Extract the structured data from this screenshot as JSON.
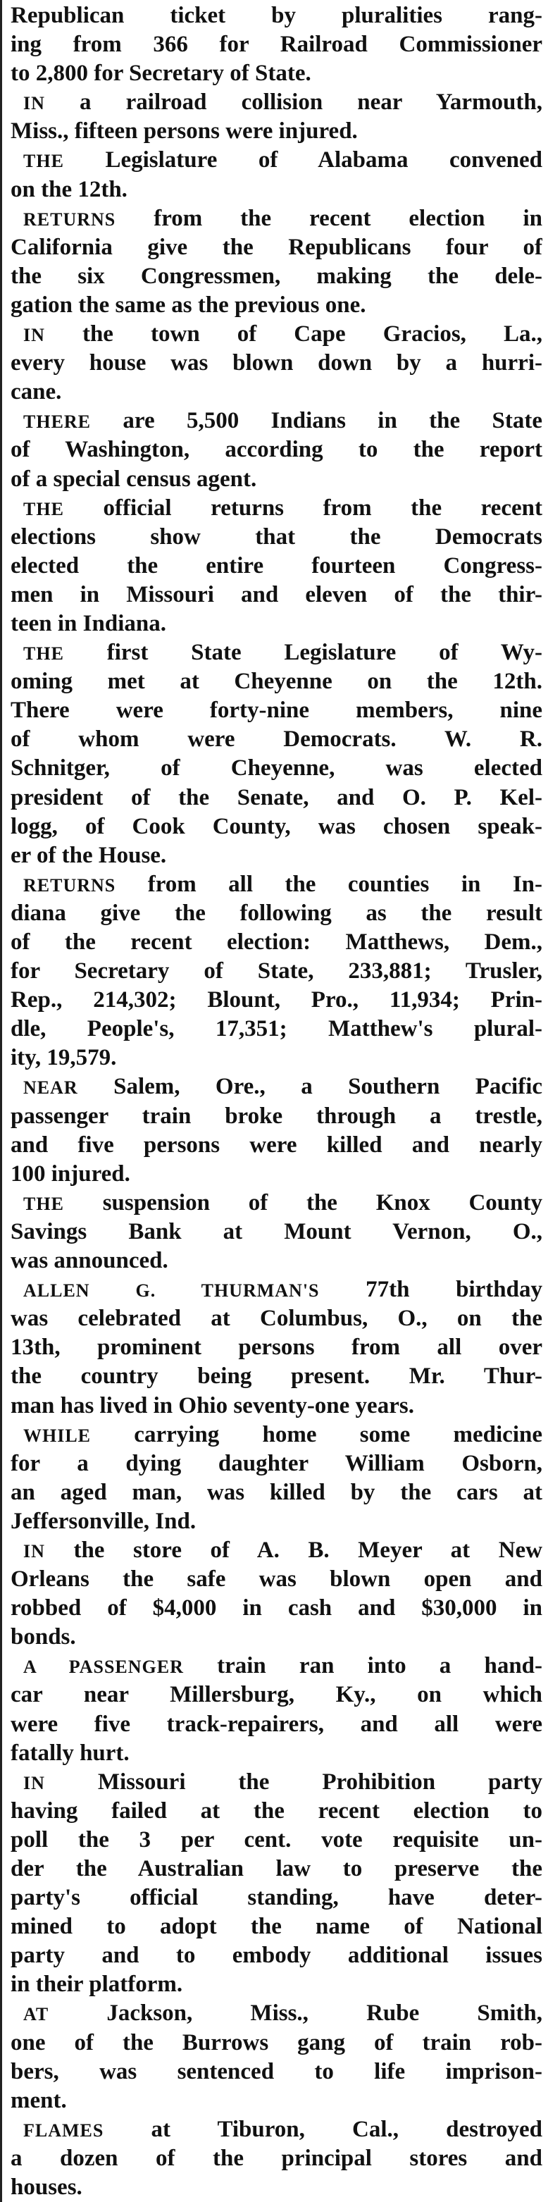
{
  "paragraphs": [
    {
      "lines": [
        "Republican ticket by pluralities rang-",
        "ing from 366 for Railroad Commissioner",
        "to 2,800 for Secretary of State."
      ]
    },
    {
      "lead": "IN",
      "lines": [
        "a railroad collision near Yarmouth,",
        "Miss., fifteen persons were injured."
      ]
    },
    {
      "lead": "THE",
      "lines": [
        "Legislature of Alabama convened",
        "on the 12th."
      ]
    },
    {
      "lead": "RETURNS",
      "lines": [
        "from the recent election in",
        "California give the Republicans four of",
        "the six Congressmen, making the dele-",
        "gation the same as the previous one."
      ]
    },
    {
      "lead": "IN",
      "lines": [
        "the town of Cape Gracios, La.,",
        "every house was blown down by a hurri-",
        "cane."
      ]
    },
    {
      "lead": "THERE",
      "lines": [
        "are 5,500 Indians in the State",
        "of Washington, according to the report",
        "of a special census agent."
      ]
    },
    {
      "lead": "THE",
      "lines": [
        "official returns from the recent",
        "elections show that the Democrats",
        "elected the entire fourteen Congress-",
        "men in Missouri and eleven of the thir-",
        "teen in Indiana."
      ]
    },
    {
      "lead": "THE",
      "lines": [
        "first State Legislature of Wy-",
        "oming met at Cheyenne on the 12th.",
        "There were forty-nine members, nine",
        "of whom were Democrats. W. R.",
        "Schnitger, of Cheyenne, was elected",
        "president of the Senate, and O. P. Kel-",
        "logg, of Cook County, was chosen speak-",
        "er of the House."
      ]
    },
    {
      "lead": "RETURNS",
      "lines": [
        "from all the counties in In-",
        "diana give the following as the result",
        "of the recent election: Matthews, Dem.,",
        "for Secretary of State, 233,881; Trusler,",
        "Rep., 214,302; Blount, Pro., 11,934; Prin-",
        "dle, People's, 17,351; Matthew's plural-",
        "ity, 19,579."
      ]
    },
    {
      "lead": "NEAR",
      "lines": [
        "Salem, Ore., a Southern Pacific",
        "passenger train broke through a trestle,",
        "and five persons were killed and nearly",
        "100 injured."
      ]
    },
    {
      "lead": "THE",
      "lines": [
        "suspension of the Knox County",
        "Savings Bank at Mount Vernon, O.,",
        "was announced."
      ]
    },
    {
      "lead": "ALLEN G. THURMAN'S",
      "lines": [
        "77th birthday",
        "was celebrated at Columbus, O., on the",
        "13th, prominent persons from all over",
        "the country being present. Mr. Thur-",
        "man has lived in Ohio seventy-one years."
      ]
    },
    {
      "lead": "WHILE",
      "lines": [
        "carrying home some medicine",
        "for a dying daughter William Osborn,",
        "an aged man, was killed by the cars at",
        "Jeffersonville, Ind."
      ]
    },
    {
      "lead": "IN",
      "lines": [
        "the store of A. B. Meyer at New",
        "Orleans the safe was blown open and",
        "robbed of $4,000 in cash and $30,000 in",
        "bonds."
      ]
    },
    {
      "lead": "A PASSENGER",
      "lines": [
        "train ran into a hand-",
        "car near Millersburg, Ky., on which",
        "were five track-repairers, and all were",
        "fatally hurt."
      ]
    },
    {
      "lead": "IN",
      "lines": [
        "Missouri the Prohibition party",
        "having failed at the recent election to",
        "poll the 3 per cent. vote requisite un-",
        "der the Australian law to preserve the",
        "party's official standing, have deter-",
        "mined to adopt the name of National",
        "party and to embody additional issues",
        "in their platform."
      ]
    },
    {
      "lead": "AT",
      "lines": [
        "Jackson, Miss., Rube Smith,",
        "one of the Burrows gang of train rob-",
        "bers, was sentenced to life imprison-",
        "ment."
      ]
    },
    {
      "lead": "FLAMES",
      "lines": [
        "at Tiburon, Cal., destroyed",
        "a dozen of the principal stores and",
        "houses."
      ]
    }
  ]
}
